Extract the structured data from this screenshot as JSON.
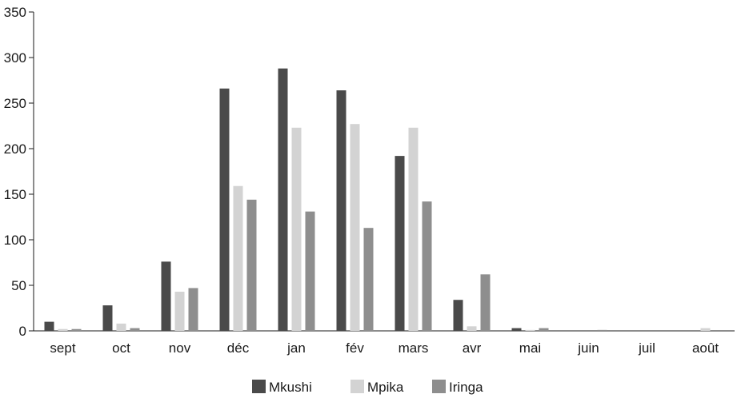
{
  "chart_data": {
    "type": "bar",
    "title": "",
    "xlabel": "",
    "ylabel": "",
    "ylim": [
      0,
      350
    ],
    "yticks": [
      0,
      50,
      100,
      150,
      200,
      250,
      300,
      350
    ],
    "grid": false,
    "legend_position": "bottom-center",
    "categories": [
      "sept",
      "oct",
      "nov",
      "déc",
      "jan",
      "fév",
      "mars",
      "avr",
      "mai",
      "juin",
      "juil",
      "août"
    ],
    "series": [
      {
        "name": "Mkushi",
        "color": "#4a4a4a",
        "values": [
          10,
          28,
          76,
          266,
          288,
          264,
          192,
          34,
          3,
          0,
          0,
          0
        ]
      },
      {
        "name": "Mpika",
        "color": "#d3d3d3",
        "values": [
          2,
          8,
          43,
          159,
          223,
          227,
          223,
          5,
          1,
          0,
          0,
          3
        ]
      },
      {
        "name": "Iringa",
        "color": "#8e8e8e",
        "values": [
          2,
          3,
          47,
          144,
          131,
          113,
          142,
          62,
          3,
          1,
          0,
          0
        ]
      }
    ]
  }
}
